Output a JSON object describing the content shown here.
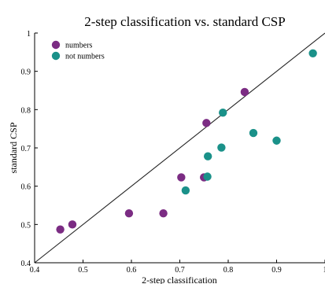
{
  "chart_data": {
    "type": "scatter",
    "title": "2-step classification vs. standard CSP",
    "xlabel": "2-step classification",
    "ylabel": "standard CSP",
    "xlim": [
      0.4,
      1.0
    ],
    "ylim": [
      0.4,
      1.0
    ],
    "xticks": [
      "0.4",
      "0.5",
      "0.6",
      "0.7",
      "0.8",
      "0.9",
      "1"
    ],
    "yticks": [
      "0.4",
      "0.5",
      "0.6",
      "0.7",
      "0.8",
      "0.9",
      "1"
    ],
    "grid": false,
    "legend": "top-left",
    "diagonal": true,
    "series": [
      {
        "name": "numbers",
        "color": "#7b2c83",
        "points": [
          {
            "x": 0.453,
            "y": 0.487
          },
          {
            "x": 0.478,
            "y": 0.5
          },
          {
            "x": 0.595,
            "y": 0.529
          },
          {
            "x": 0.666,
            "y": 0.529
          },
          {
            "x": 0.703,
            "y": 0.623
          },
          {
            "x": 0.75,
            "y": 0.623
          },
          {
            "x": 0.755,
            "y": 0.765
          },
          {
            "x": 0.834,
            "y": 0.846
          }
        ]
      },
      {
        "name": "not numbers",
        "color": "#1a9189",
        "points": [
          {
            "x": 0.712,
            "y": 0.589
          },
          {
            "x": 0.757,
            "y": 0.625
          },
          {
            "x": 0.758,
            "y": 0.678
          },
          {
            "x": 0.786,
            "y": 0.701
          },
          {
            "x": 0.789,
            "y": 0.792
          },
          {
            "x": 0.852,
            "y": 0.739
          },
          {
            "x": 0.9,
            "y": 0.719
          },
          {
            "x": 0.975,
            "y": 0.947
          }
        ]
      }
    ]
  }
}
